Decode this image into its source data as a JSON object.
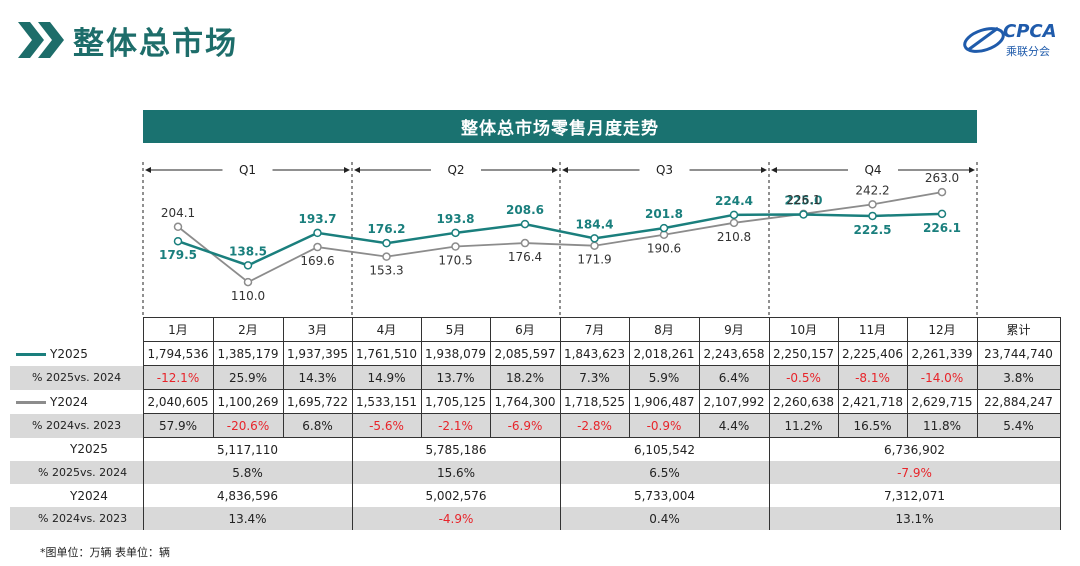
{
  "header": {
    "title": "整体总市场",
    "logo_text": "CPCA",
    "logo_subtext": "乘联分会"
  },
  "banner": {
    "title": "整体总市场零售月度走势"
  },
  "chart_data": {
    "type": "line",
    "title": "整体总市场零售月度走势",
    "categories": [
      "1月",
      "2月",
      "3月",
      "4月",
      "5月",
      "6月",
      "7月",
      "8月",
      "9月",
      "10月",
      "11月",
      "12月"
    ],
    "quarters": [
      "Q1",
      "Q2",
      "Q3",
      "Q4"
    ],
    "series": [
      {
        "name": "Y2025",
        "color": "#1a7f7d",
        "values": [
          179.5,
          138.5,
          193.7,
          176.2,
          193.8,
          208.6,
          184.4,
          201.8,
          224.4,
          225.0,
          222.5,
          226.1
        ]
      },
      {
        "name": "Y2024",
        "color": "#8c8c8c",
        "values": [
          204.1,
          110.0,
          169.6,
          153.3,
          170.5,
          176.4,
          171.9,
          190.6,
          210.8,
          226.1,
          242.2,
          263.0
        ]
      }
    ],
    "labels": {
      "Y2025": [
        "179.5",
        "138.5",
        "193.7",
        "176.2",
        "193.8",
        "208.6",
        "184.4",
        "201.8",
        "224.4",
        "225.0",
        "222.5",
        "226.1"
      ],
      "Y2024": [
        "204.1",
        "110.0",
        "169.6",
        "153.3",
        "170.5",
        "176.4",
        "171.9",
        "190.6",
        "210.8",
        "226.1",
        "242.2",
        "263.0"
      ]
    },
    "ylim": [
      100,
      270
    ],
    "unit": "万辆"
  },
  "table": {
    "header": [
      "1月",
      "2月",
      "3月",
      "4月",
      "5月",
      "6月",
      "7月",
      "8月",
      "9月",
      "10月",
      "11月",
      "12月",
      "累计"
    ],
    "rows": [
      {
        "label": "Y2025",
        "legend": "Y2025",
        "shaded": false,
        "cells": [
          "1,794,536",
          "1,385,179",
          "1,937,395",
          "1,761,510",
          "1,938,079",
          "2,085,597",
          "1,843,623",
          "2,018,261",
          "2,243,658",
          "2,250,157",
          "2,225,406",
          "2,261,339",
          "23,744,740"
        ]
      },
      {
        "label": "% 2025vs. 2024",
        "shaded": true,
        "cells": [
          "-12.1%",
          "25.9%",
          "14.3%",
          "14.9%",
          "13.7%",
          "18.2%",
          "7.3%",
          "5.9%",
          "6.4%",
          "-0.5%",
          "-8.1%",
          "-14.0%",
          "3.8%"
        ]
      },
      {
        "label": "Y2024",
        "legend": "Y2024",
        "shaded": false,
        "cells": [
          "2,040,605",
          "1,100,269",
          "1,695,722",
          "1,533,151",
          "1,705,125",
          "1,764,300",
          "1,718,525",
          "1,906,487",
          "2,107,992",
          "2,260,638",
          "2,421,718",
          "2,629,715",
          "22,884,247"
        ]
      },
      {
        "label": "% 2024vs. 2023",
        "shaded": true,
        "cells": [
          "57.9%",
          "-20.6%",
          "6.8%",
          "-5.6%",
          "-2.1%",
          "-6.9%",
          "-2.8%",
          "-0.9%",
          "4.4%",
          "11.2%",
          "16.5%",
          "11.8%",
          "5.4%"
        ]
      }
    ],
    "quarter_rows": [
      {
        "label": "Y2025",
        "shaded": false,
        "cells": [
          "5,117,110",
          "5,785,186",
          "6,105,542",
          "6,736,902"
        ]
      },
      {
        "label": "% 2025vs. 2024",
        "shaded": true,
        "cells": [
          "5.8%",
          "15.6%",
          "6.5%",
          "-7.9%"
        ]
      },
      {
        "label": "Y2024",
        "shaded": false,
        "cells": [
          "4,836,596",
          "5,002,576",
          "5,733,004",
          "7,312,071"
        ]
      },
      {
        "label": "% 2024vs. 2023",
        "shaded": true,
        "cells": [
          "13.4%",
          "-4.9%",
          "0.4%",
          "13.1%"
        ]
      }
    ]
  },
  "footnote": "*图单位：万辆    表单位：辆"
}
